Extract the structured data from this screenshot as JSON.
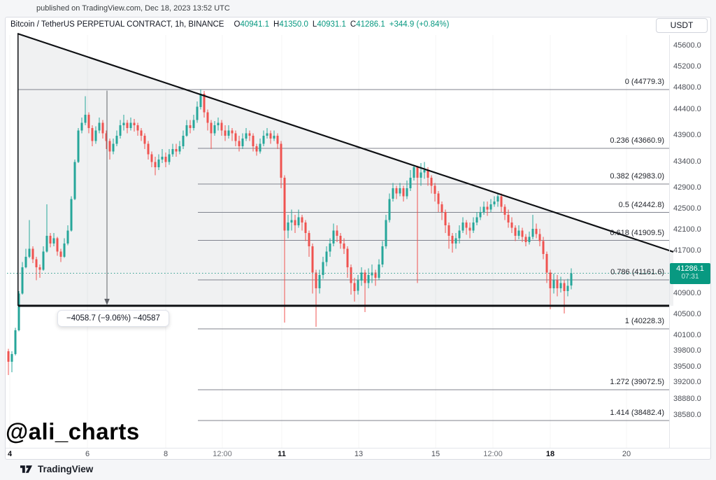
{
  "banner": {
    "published_text": "published on TradingView.com, Dec 18, 2023 13:52 UTC"
  },
  "header": {
    "symbol_title": "Bitcoin / TetherUS PERPETUAL CONTRACT, 1h, BINANCE",
    "ohlc": {
      "o_label": "O",
      "o": "40941.1",
      "h_label": "H",
      "h": "41350.0",
      "l_label": "L",
      "l": "40931.1",
      "c_label": "C",
      "c": "41286.1",
      "change": "+344.9 (+0.84%)"
    },
    "currency_button_label": "USDT"
  },
  "price_badge": {
    "price": "41286.1",
    "countdown": "07:31"
  },
  "measure_tool": {
    "label": "−4058.7 (−9.06%) −40587"
  },
  "watermark": {
    "text": "@ali_charts"
  },
  "footer": {
    "brand": "TradingView"
  },
  "colors": {
    "bull": "#26a69a",
    "bear": "#ef5350",
    "badge_bg": "#089981",
    "value_green": "#089981",
    "drawing_black": "#0e1013",
    "fib_gray": "#80838e",
    "triangle_fill": "rgba(130,140,152,0.12)",
    "price_line": "#2f9e8e"
  },
  "chart_data": {
    "type": "candlestick",
    "title": "Bitcoin / TetherUS PERPETUAL CONTRACT, 1h, BINANCE",
    "exchange": "BINANCE",
    "timeframe": "1h",
    "current_price": 41286.1,
    "ohlc_summary": {
      "open": 40941.1,
      "high": 41350.0,
      "low": 40931.1,
      "close": 41286.1,
      "change": 344.9,
      "change_pct": 0.84
    },
    "fib_levels": [
      {
        "level": "0",
        "price": 44779.3
      },
      {
        "level": "0.236",
        "price": 43660.9
      },
      {
        "level": "0.382",
        "price": 42983.0
      },
      {
        "level": "0.5",
        "price": 42442.8
      },
      {
        "level": "0.618",
        "price": 41909.5
      },
      {
        "level": "0.786",
        "price": 41161.6
      },
      {
        "level": "1",
        "price": 40228.3
      },
      {
        "level": "1.272",
        "price": 39072.5
      },
      {
        "level": "1.414",
        "price": 38482.4
      }
    ],
    "measurement": {
      "delta": -4058.7,
      "pct": -9.06,
      "end_price": 40587
    },
    "y_ticks": [
      45600.0,
      45200.0,
      44800.0,
      44400.0,
      43900.0,
      43400.0,
      42900.0,
      42500.0,
      42100.0,
      41700.0,
      40900.0,
      40500.0,
      40100.0,
      39800.0,
      39500.0,
      39200.0,
      38880.0,
      38580.0
    ],
    "x_ticks": [
      {
        "label": "4",
        "x": 14,
        "bold": true
      },
      {
        "label": "6",
        "x": 125,
        "bold": false
      },
      {
        "label": "8",
        "x": 237,
        "bold": false
      },
      {
        "label": "12:00",
        "x": 318,
        "bold": false
      },
      {
        "label": "11",
        "x": 403,
        "bold": true
      },
      {
        "label": "13",
        "x": 513,
        "bold": false
      },
      {
        "label": "15",
        "x": 623,
        "bold": false
      },
      {
        "label": "12:00",
        "x": 705,
        "bold": false
      },
      {
        "label": "18",
        "x": 787,
        "bold": true
      },
      {
        "label": "20",
        "x": 896,
        "bold": false
      }
    ],
    "candles": [
      [
        39800,
        39850,
        39350,
        39600
      ],
      [
        39600,
        39800,
        39400,
        39750
      ],
      [
        39750,
        40250,
        39720,
        40200
      ],
      [
        40200,
        40950,
        40180,
        40900
      ],
      [
        40900,
        41500,
        40880,
        41400
      ],
      [
        41400,
        41750,
        41380,
        41600
      ],
      [
        41600,
        42300,
        41570,
        41750
      ],
      [
        41750,
        41800,
        41480,
        41550
      ],
      [
        41550,
        41600,
        41150,
        41400
      ],
      [
        41400,
        41450,
        41200,
        41350
      ],
      [
        41350,
        41800,
        41330,
        41700
      ],
      [
        41700,
        42600,
        41680,
        42000
      ],
      [
        42000,
        42050,
        41780,
        41850
      ],
      [
        41850,
        42050,
        41800,
        41950
      ],
      [
        41950,
        41980,
        41620,
        41700
      ],
      [
        41700,
        41750,
        41500,
        41600
      ],
      [
        41600,
        41950,
        41580,
        41850
      ],
      [
        41850,
        42200,
        41820,
        42100
      ],
      [
        42100,
        42750,
        42080,
        42700
      ],
      [
        42700,
        43450,
        42680,
        43400
      ],
      [
        43400,
        44050,
        43380,
        44000
      ],
      [
        44000,
        44250,
        43950,
        44150
      ],
      [
        44150,
        44650,
        44100,
        44300
      ],
      [
        44300,
        44350,
        43950,
        44050
      ],
      [
        44050,
        44100,
        43700,
        43800
      ],
      [
        43800,
        44080,
        43750,
        44000
      ],
      [
        44000,
        44250,
        43950,
        44150
      ],
      [
        44150,
        44200,
        43850,
        43950
      ],
      [
        43950,
        44000,
        43650,
        43800
      ],
      [
        43800,
        43850,
        43450,
        43600
      ],
      [
        43600,
        43850,
        43550,
        43750
      ],
      [
        43750,
        44000,
        43700,
        43900
      ],
      [
        43900,
        44200,
        43850,
        44100
      ],
      [
        44100,
        44300,
        44000,
        44150
      ],
      [
        44150,
        44200,
        43950,
        44050
      ],
      [
        44050,
        44250,
        44000,
        44150
      ],
      [
        44150,
        44220,
        43980,
        44100
      ],
      [
        44100,
        44150,
        43900,
        44000
      ],
      [
        44000,
        44050,
        43800,
        43900
      ],
      [
        43900,
        43950,
        43650,
        43750
      ],
      [
        43750,
        43800,
        43450,
        43550
      ],
      [
        43550,
        43600,
        43300,
        43400
      ],
      [
        43400,
        43500,
        43150,
        43300
      ],
      [
        43300,
        43550,
        43250,
        43450
      ],
      [
        43450,
        43650,
        43380,
        43500
      ],
      [
        43500,
        43580,
        43300,
        43400
      ],
      [
        43400,
        43650,
        43350,
        43550
      ],
      [
        43550,
        43750,
        43500,
        43650
      ],
      [
        43650,
        43750,
        43500,
        43600
      ],
      [
        43600,
        43800,
        43550,
        43700
      ],
      [
        43700,
        44000,
        43650,
        43900
      ],
      [
        43900,
        44200,
        43880,
        44100
      ],
      [
        44100,
        44200,
        43950,
        44050
      ],
      [
        44050,
        44300,
        44000,
        44200
      ],
      [
        44200,
        44550,
        44150,
        44450
      ],
      [
        44450,
        44780,
        44400,
        44700
      ],
      [
        44700,
        44750,
        44250,
        44350
      ],
      [
        44350,
        44400,
        44000,
        44150
      ],
      [
        44150,
        44200,
        43650,
        43950
      ],
      [
        43950,
        44180,
        43900,
        44100
      ],
      [
        44100,
        44250,
        44000,
        44150
      ],
      [
        44150,
        44200,
        43900,
        44000
      ],
      [
        44000,
        44100,
        43800,
        43900
      ],
      [
        43900,
        44100,
        43850,
        44000
      ],
      [
        44000,
        44050,
        43800,
        43950
      ],
      [
        43950,
        44000,
        43700,
        43800
      ],
      [
        43800,
        43900,
        43600,
        43700
      ],
      [
        43700,
        43950,
        43650,
        43850
      ],
      [
        43850,
        44050,
        43800,
        43950
      ],
      [
        43950,
        44000,
        43800,
        43900
      ],
      [
        43900,
        43950,
        43600,
        43700
      ],
      [
        43700,
        43750,
        43520,
        43600
      ],
      [
        43600,
        43850,
        43560,
        43750
      ],
      [
        43750,
        44000,
        43700,
        43900
      ],
      [
        43900,
        44050,
        43850,
        43950
      ],
      [
        43950,
        44000,
        43750,
        43850
      ],
      [
        43850,
        44000,
        43800,
        43900
      ],
      [
        43900,
        43950,
        43650,
        43750
      ],
      [
        43750,
        43800,
        42900,
        43100
      ],
      [
        43100,
        43150,
        40350,
        42100
      ],
      [
        42100,
        42400,
        41950,
        42250
      ],
      [
        42250,
        42500,
        42100,
        42300
      ],
      [
        42300,
        42400,
        42050,
        42200
      ],
      [
        42200,
        42500,
        42150,
        42350
      ],
      [
        42350,
        42400,
        42100,
        42250
      ],
      [
        42250,
        42300,
        41900,
        42050
      ],
      [
        42050,
        42100,
        41600,
        41800
      ],
      [
        41800,
        41850,
        40900,
        41300
      ],
      [
        41300,
        41350,
        40270,
        41000
      ],
      [
        41000,
        41350,
        40900,
        41250
      ],
      [
        41250,
        41600,
        41180,
        41500
      ],
      [
        41500,
        41800,
        41420,
        41700
      ],
      [
        41700,
        41950,
        41600,
        41850
      ],
      [
        41850,
        42230,
        41800,
        42100
      ],
      [
        42100,
        42200,
        41880,
        42000
      ],
      [
        42000,
        42050,
        41750,
        41850
      ],
      [
        41850,
        41950,
        41650,
        41750
      ],
      [
        41750,
        41800,
        41200,
        41400
      ],
      [
        41400,
        41450,
        40880,
        41100
      ],
      [
        41100,
        41200,
        40750,
        40950
      ],
      [
        40950,
        41250,
        40880,
        41150
      ],
      [
        41150,
        41400,
        41050,
        41300
      ],
      [
        41300,
        41350,
        40550,
        41100
      ],
      [
        41100,
        41380,
        41000,
        41250
      ],
      [
        41250,
        41450,
        41100,
        41300
      ],
      [
        41300,
        41350,
        41050,
        41200
      ],
      [
        41200,
        41550,
        41150,
        41450
      ],
      [
        41450,
        41900,
        41400,
        41800
      ],
      [
        41800,
        42400,
        41750,
        42300
      ],
      [
        42300,
        42800,
        42250,
        42700
      ],
      [
        42700,
        43000,
        42650,
        42900
      ],
      [
        42900,
        42950,
        42700,
        42800
      ],
      [
        42800,
        43000,
        42750,
        42900
      ],
      [
        42900,
        42950,
        42650,
        42750
      ],
      [
        42750,
        43050,
        42700,
        42900
      ],
      [
        42900,
        43250,
        42850,
        43100
      ],
      [
        43100,
        43350,
        43050,
        43300
      ],
      [
        43300,
        43330,
        41100,
        43100
      ],
      [
        43100,
        43380,
        42950,
        43200
      ],
      [
        43200,
        43400,
        43080,
        43250
      ],
      [
        43250,
        43300,
        42950,
        43100
      ],
      [
        43100,
        43150,
        42800,
        42950
      ],
      [
        42950,
        43000,
        42650,
        42800
      ],
      [
        42800,
        42850,
        42450,
        42600
      ],
      [
        42600,
        42650,
        42300,
        42450
      ],
      [
        42450,
        42500,
        42050,
        42200
      ],
      [
        42200,
        42250,
        41750,
        42000
      ],
      [
        42000,
        42050,
        41680,
        41850
      ],
      [
        41850,
        42050,
        41750,
        41950
      ],
      [
        41950,
        42200,
        41850,
        42100
      ],
      [
        42100,
        42350,
        42050,
        42250
      ],
      [
        42250,
        42300,
        42020,
        42150
      ],
      [
        42150,
        42250,
        41950,
        42100
      ],
      [
        42100,
        42350,
        42050,
        42250
      ],
      [
        42250,
        42450,
        42200,
        42350
      ],
      [
        42350,
        42550,
        42300,
        42450
      ],
      [
        42450,
        42650,
        42400,
        42550
      ],
      [
        42550,
        42650,
        42380,
        42500
      ],
      [
        42500,
        42700,
        42450,
        42600
      ],
      [
        42600,
        42750,
        42550,
        42650
      ],
      [
        42650,
        42800,
        42550,
        42750
      ],
      [
        42750,
        42800,
        42450,
        42550
      ],
      [
        42550,
        42600,
        42300,
        42400
      ],
      [
        42400,
        42500,
        42150,
        42250
      ],
      [
        42250,
        42350,
        42050,
        42150
      ],
      [
        42150,
        42200,
        41900,
        42000
      ],
      [
        42000,
        42200,
        41930,
        42100
      ],
      [
        42100,
        42150,
        41880,
        41980
      ],
      [
        41980,
        42030,
        41800,
        41880
      ],
      [
        41880,
        42080,
        41830,
        41980
      ],
      [
        41980,
        42400,
        41930,
        42130
      ],
      [
        42130,
        42230,
        41950,
        42030
      ],
      [
        42030,
        42130,
        41800,
        41900
      ],
      [
        41900,
        41980,
        41550,
        41650
      ],
      [
        41650,
        41700,
        41100,
        41300
      ],
      [
        41300,
        41350,
        40600,
        41000
      ],
      [
        41000,
        41280,
        40900,
        41150
      ],
      [
        41150,
        41250,
        40850,
        41000
      ],
      [
        41000,
        41220,
        40920,
        41100
      ],
      [
        41100,
        41150,
        40520,
        40950
      ],
      [
        40950,
        41180,
        40850,
        41050
      ],
      [
        41050,
        41380,
        40980,
        41286.1
      ]
    ]
  }
}
